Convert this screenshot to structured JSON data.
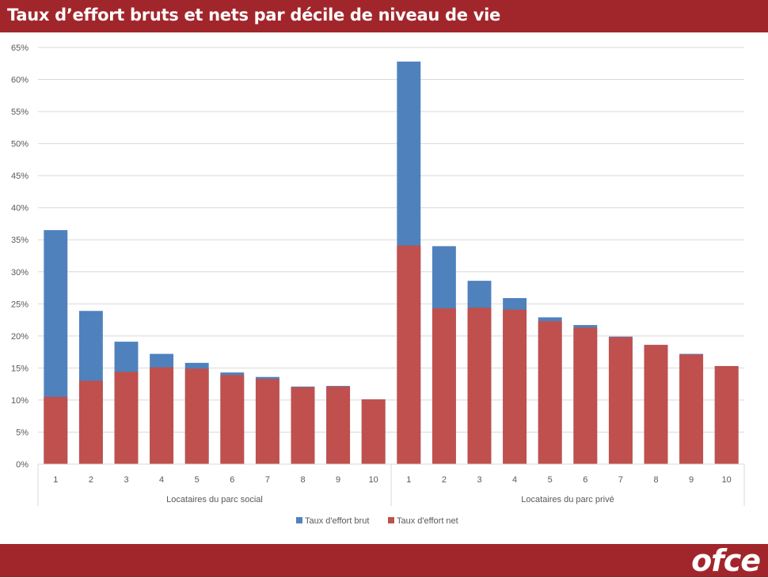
{
  "header": {
    "title": "Taux d’effort bruts et nets par décile de niveau de vie"
  },
  "footer": {
    "logo_text": "ofce"
  },
  "colors": {
    "banner": "#a1262b",
    "brut": "#4f81bd",
    "net": "#c0504d",
    "grid": "#d9d9d9",
    "axis_text": "#595959"
  },
  "chart_data": {
    "type": "bar",
    "stacking": "overlay",
    "title": "Taux d’effort bruts et nets par décile de niveau de vie",
    "ylim": [
      0,
      65
    ],
    "yticks": [
      "0%",
      "5%",
      "10%",
      "15%",
      "20%",
      "25%",
      "30%",
      "35%",
      "40%",
      "45%",
      "50%",
      "55%",
      "60%",
      "65%"
    ],
    "grid": true,
    "legend_position": "bottom",
    "groups": [
      {
        "label": "Locataires du parc social",
        "categories": [
          "1",
          "2",
          "3",
          "4",
          "5",
          "6",
          "7",
          "8",
          "9",
          "10"
        ]
      },
      {
        "label": "Locataires du parc privé",
        "categories": [
          "1",
          "2",
          "3",
          "4",
          "5",
          "6",
          "7",
          "8",
          "9",
          "10"
        ]
      }
    ],
    "series": [
      {
        "name": "Taux d'effort brut",
        "values": [
          36.5,
          23.9,
          19.1,
          17.2,
          15.8,
          14.3,
          13.6,
          12.1,
          12.2,
          10.1,
          62.8,
          34.0,
          28.6,
          25.9,
          22.9,
          21.7,
          19.9,
          18.6,
          17.2,
          15.3
        ]
      },
      {
        "name": "Taux d'effort net",
        "values": [
          10.5,
          13.0,
          14.4,
          15.1,
          14.9,
          13.9,
          13.3,
          12.0,
          12.1,
          10.1,
          34.1,
          24.3,
          24.4,
          24.1,
          22.3,
          21.3,
          19.8,
          18.6,
          17.1,
          15.3
        ]
      }
    ]
  }
}
